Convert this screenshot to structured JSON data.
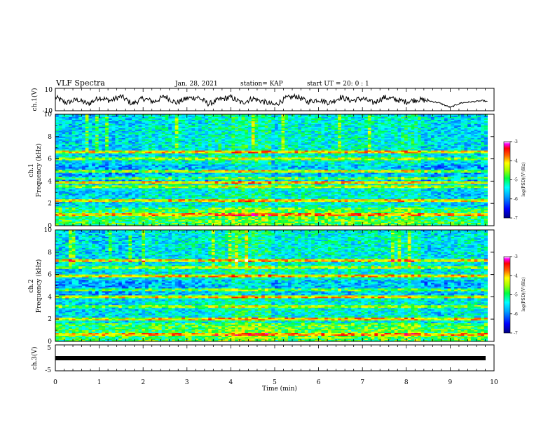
{
  "header": {
    "title": "VLF Spectra",
    "date": "Jan. 28, 2021",
    "station": "station= KAP",
    "start": "start  UT =  20: 0  : 1"
  },
  "colors": {
    "colormap": [
      "#000080",
      "#0000ff",
      "#0080ff",
      "#00e0ff",
      "#00ff80",
      "#40ff00",
      "#c0ff00",
      "#ffff00",
      "#ff8000",
      "#ff0000",
      "#ff00ff",
      "#ffffff"
    ]
  },
  "chart_data": [
    {
      "type": "line",
      "name": "ch1-waveform",
      "ylabel": "ch.1(V)",
      "ylim": [
        -10,
        10
      ],
      "ytick_labels": [
        "-10",
        "10"
      ],
      "xlim": [
        0,
        10
      ],
      "x": [
        0.0,
        0.25,
        0.5,
        0.75,
        1.0,
        1.25,
        1.5,
        1.75,
        2.0,
        2.25,
        2.5,
        2.75,
        3.0,
        3.25,
        3.5,
        3.75,
        4.0,
        4.25,
        4.5,
        4.75,
        5.0,
        5.25,
        5.5,
        5.75,
        6.0,
        6.25,
        6.5,
        6.75,
        7.0,
        7.25,
        7.5,
        7.75,
        8.0,
        8.25,
        8.5,
        8.75,
        9.0,
        9.25,
        9.5,
        9.75,
        9.85
      ],
      "values": [
        2,
        -3,
        0,
        -4,
        2,
        -1,
        3,
        -4,
        1,
        -2,
        3,
        -3,
        1,
        2,
        -4,
        0,
        2,
        -3,
        1,
        -2,
        -5,
        1,
        3,
        -2,
        0,
        -3,
        2,
        -1,
        1,
        -3,
        2,
        0,
        -2,
        0,
        -1,
        -3,
        -7,
        -3,
        -2,
        -1,
        -2
      ]
    },
    {
      "type": "heatmap",
      "name": "ch1-spectrogram",
      "ylabel": "ch.1\nFrequency (kHz)",
      "xlim": [
        0,
        10
      ],
      "ylim": [
        0,
        10
      ],
      "yticks": [
        0,
        2,
        4,
        6,
        8,
        10
      ],
      "x_extent_min": 9.85,
      "colorbar": {
        "label": "log(PSD)(V²/Hz)",
        "ticks": [
          -3,
          -4,
          -5,
          -6,
          -7
        ],
        "range": [
          -7,
          -3
        ]
      },
      "segment_boundaries_min": [
        2.0,
        3.5,
        4.0,
        4.9,
        5.1,
        7.9,
        8.3
      ],
      "notable_bands_khz": [
        6.6,
        6.0,
        4.9,
        4.3,
        3.9,
        3.5,
        2.3,
        1.0
      ]
    },
    {
      "type": "heatmap",
      "name": "ch2-spectrogram",
      "ylabel": "ch.2\nFrequency (kHz)",
      "xlim": [
        0,
        10
      ],
      "ylim": [
        0,
        10
      ],
      "yticks": [
        0,
        2,
        4,
        6,
        8,
        10
      ],
      "x_extent_min": 9.85,
      "colorbar": {
        "label": "log(PSD)(V²/Hz)",
        "ticks": [
          -3,
          -4,
          -5,
          -6,
          -7
        ],
        "range": [
          -7,
          -3
        ]
      },
      "segment_boundaries_min": [
        2.0,
        3.5,
        4.0,
        4.9,
        5.1,
        7.9,
        8.3,
        9.0
      ],
      "notable_bands_khz": [
        7.3,
        6.6,
        5.9,
        4.6,
        4.0,
        3.1,
        2.0,
        0.6
      ]
    },
    {
      "type": "line",
      "name": "ch3-waveform",
      "ylabel": "ch.3(V)",
      "ylim": [
        -5,
        5
      ],
      "ytick_labels": [
        "-5",
        "5"
      ],
      "xlim": [
        0,
        10
      ],
      "x": [
        0,
        9.85
      ],
      "values": [
        0,
        0
      ]
    }
  ],
  "xaxis": {
    "label": "Time (min)",
    "tick_labels": [
      "0",
      "1",
      "2",
      "3",
      "4",
      "5",
      "6",
      "7",
      "8",
      "9",
      "10"
    ]
  }
}
